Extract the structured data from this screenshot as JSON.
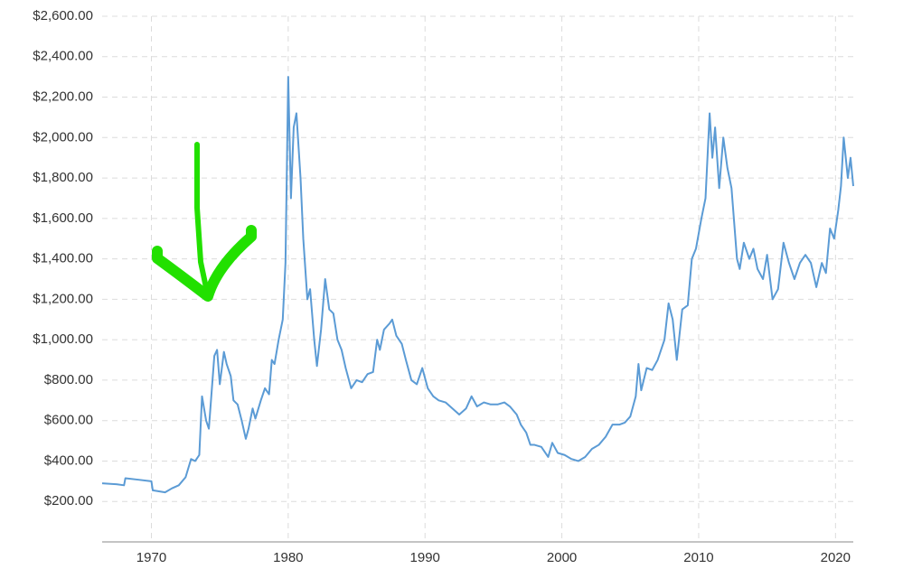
{
  "chart_data": {
    "type": "line",
    "x": [
      1966.4,
      1967.5,
      1968.0,
      1968.1,
      1969,
      1970,
      1970.1,
      1971,
      1971.5,
      1972,
      1972.5,
      1972.9,
      1973.2,
      1973.5,
      1973.7,
      1974.0,
      1974.2,
      1974.6,
      1974.8,
      1975.0,
      1975.3,
      1975.5,
      1975.8,
      1976.0,
      1976.3,
      1976.6,
      1976.9,
      1977.1,
      1977.4,
      1977.6,
      1978.0,
      1978.3,
      1978.6,
      1978.8,
      1979.0,
      1979.3,
      1979.6,
      1979.8,
      1980.0,
      1980.2,
      1980.4,
      1980.6,
      1980.9,
      1981.1,
      1981.4,
      1981.6,
      1981.9,
      1982.1,
      1982.4,
      1982.7,
      1983.0,
      1983.3,
      1983.6,
      1983.9,
      1984.2,
      1984.6,
      1985.0,
      1985.4,
      1985.8,
      1986.2,
      1986.5,
      1986.7,
      1987.0,
      1987.4,
      1987.6,
      1987.9,
      1988.3,
      1988.6,
      1989.0,
      1989.4,
      1989.8,
      1990.2,
      1990.6,
      1991.0,
      1991.5,
      1992.0,
      1992.5,
      1993.0,
      1993.4,
      1993.8,
      1994.3,
      1994.8,
      1995.3,
      1995.8,
      1996.2,
      1996.7,
      1997.0,
      1997.4,
      1997.7,
      1998.0,
      1998.5,
      1999.0,
      1999.3,
      1999.7,
      2000.2,
      2000.7,
      2001.2,
      2001.7,
      2002.2,
      2002.7,
      2003.2,
      2003.7,
      2004.2,
      2004.6,
      2005.0,
      2005.4,
      2005.6,
      2005.8,
      2006.2,
      2006.6,
      2007.0,
      2007.5,
      2007.8,
      2008.1,
      2008.4,
      2008.8,
      2009.2,
      2009.5,
      2009.8,
      2010.2,
      2010.5,
      2010.8,
      2011.0,
      2011.2,
      2011.5,
      2011.8,
      2012.1,
      2012.4,
      2012.8,
      2013.0,
      2013.3,
      2013.7,
      2014.0,
      2014.3,
      2014.7,
      2015.0,
      2015.4,
      2015.8,
      2016.2,
      2016.6,
      2017.0,
      2017.4,
      2017.8,
      2018.2,
      2018.6,
      2019.0,
      2019.3,
      2019.6,
      2019.9,
      2020.2,
      2020.4,
      2020.6,
      2020.9,
      2021.1,
      2021.3
    ],
    "series": [
      {
        "color": "#5b9bd5",
        "values": [
          290,
          285,
          280,
          315,
          308,
          300,
          255,
          245,
          265,
          280,
          320,
          410,
          400,
          430,
          720,
          600,
          560,
          920,
          950,
          780,
          940,
          880,
          820,
          700,
          680,
          600,
          510,
          560,
          660,
          610,
          700,
          760,
          730,
          900,
          880,
          1000,
          1100,
          1380,
          2300,
          1700,
          2050,
          2120,
          1800,
          1500,
          1200,
          1250,
          1000,
          870,
          1050,
          1300,
          1150,
          1130,
          1000,
          950,
          860,
          760,
          800,
          790,
          830,
          840,
          1000,
          950,
          1050,
          1080,
          1100,
          1020,
          980,
          900,
          800,
          780,
          860,
          760,
          720,
          700,
          690,
          660,
          630,
          660,
          720,
          670,
          690,
          680,
          680,
          690,
          670,
          630,
          580,
          540,
          480,
          480,
          470,
          420,
          490,
          440,
          430,
          410,
          400,
          420,
          460,
          480,
          520,
          580,
          580,
          590,
          620,
          720,
          880,
          750,
          860,
          850,
          900,
          1000,
          1180,
          1100,
          900,
          1150,
          1170,
          1400,
          1450,
          1600,
          1700,
          2120,
          1900,
          2050,
          1750,
          2000,
          1850,
          1750,
          1400,
          1350,
          1480,
          1400,
          1450,
          1350,
          1300,
          1420,
          1200,
          1250,
          1480,
          1380,
          1300,
          1380,
          1420,
          1380,
          1260,
          1380,
          1330,
          1550,
          1500,
          1640,
          1760,
          2000,
          1800,
          1900,
          1760
        ]
      }
    ],
    "xlim": [
      1966.4,
      2021.3
    ],
    "xticks": [
      1970,
      1980,
      1990,
      2000,
      2010,
      2020
    ],
    "ylim": [
      0,
      2600
    ],
    "yticks": [
      {
        "value": 200,
        "label": "$200.00"
      },
      {
        "value": 400,
        "label": "$400.00"
      },
      {
        "value": 600,
        "label": "$600.00"
      },
      {
        "value": 800,
        "label": "$800.00"
      },
      {
        "value": 1000,
        "label": "$1,000.00"
      },
      {
        "value": 1200,
        "label": "$1,200.00"
      },
      {
        "value": 1400,
        "label": "$1,400.00"
      },
      {
        "value": 1600,
        "label": "$1,600.00"
      },
      {
        "value": 1800,
        "label": "$1,800.00"
      },
      {
        "value": 2000,
        "label": "$2,000.00"
      },
      {
        "value": 2200,
        "label": "$2,200.00"
      },
      {
        "value": 2400,
        "label": "$2,400.00"
      },
      {
        "value": 2600,
        "label": "$2,600.00"
      }
    ],
    "grid": true
  }
}
